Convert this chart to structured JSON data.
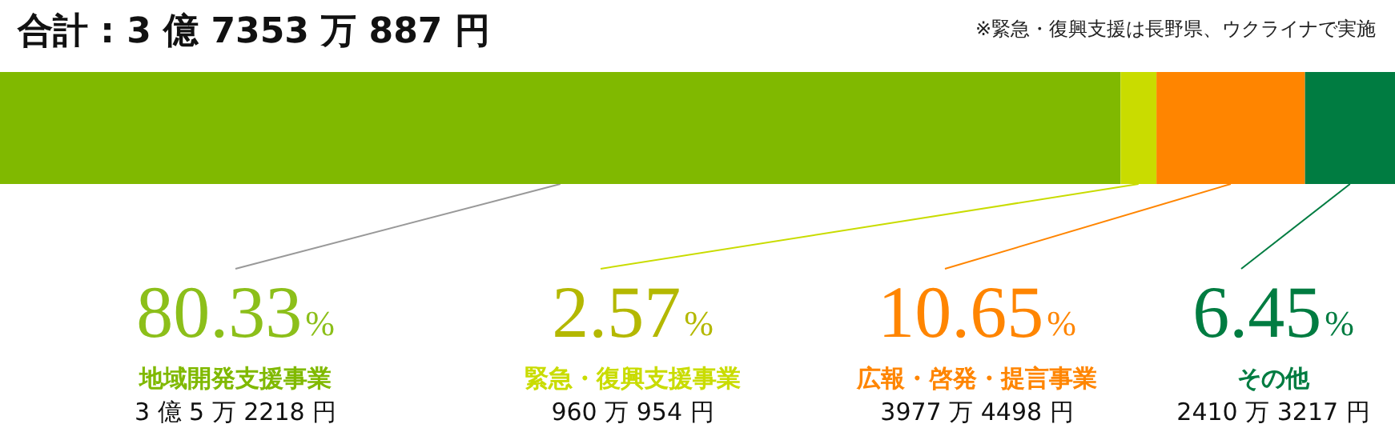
{
  "chart_data": {
    "type": "bar",
    "orientation": "horizontal",
    "stacked": true,
    "title": "合計 : 3 億 7353 万 887 円",
    "categories": [
      null
    ],
    "xlim": [
      0,
      100
    ],
    "tick_labels": false,
    "legend": false,
    "series": [
      {
        "name": "地域開発支援事業",
        "color": "#80b900",
        "values": [
          80.33
        ],
        "value_labels": [
          "80.33%"
        ]
      },
      {
        "name": "緊急・復興支援事業",
        "color": "#c9dc00",
        "values": [
          2.57
        ],
        "value_labels": [
          "2.57%"
        ]
      },
      {
        "name": "広報・啓発・提言事業",
        "color": "#ff8500",
        "values": [
          10.65
        ],
        "value_labels": [
          "10.65%"
        ]
      },
      {
        "name": "その他",
        "color": "#007c41",
        "values": [
          6.45
        ],
        "value_labels": [
          "6.45%"
        ]
      }
    ],
    "annotations": [
      "※緊急・復興支援は長野県、ウクライナで実施",
      "3 億 5 万 2218 円",
      "960 万 954 円",
      "3977 万 4498 円",
      "2410 万 3217 円"
    ]
  }
}
